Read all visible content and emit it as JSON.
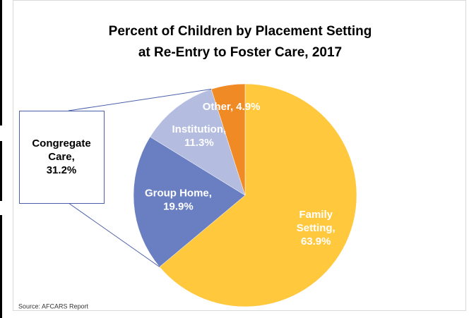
{
  "chart_data": {
    "type": "pie",
    "title": [
      "Percent of Children by Placement Setting",
      "at Re-Entry to Foster Care, 2017"
    ],
    "values": [
      63.9,
      19.9,
      11.3,
      4.9
    ],
    "value_labels": [
      "Family Setting, 63.9%",
      "Group Home, 19.9%",
      "Institution, 11.3%",
      "Other, 4.9%"
    ],
    "colors": [
      "#FFC83D",
      "#6A7FC1",
      "#B4BCE0",
      "#F08A25"
    ],
    "annotation": "Congregate Care, 31.2%",
    "source": "Source: AFCARS Report"
  }
}
